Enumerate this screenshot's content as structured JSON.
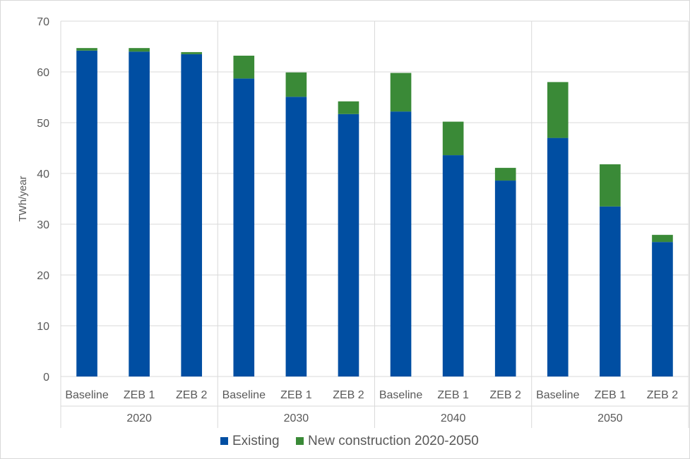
{
  "chart_data": {
    "type": "bar",
    "stacked": true,
    "ylabel": "TWh/year",
    "ylim": [
      0,
      70
    ],
    "yticks": [
      0,
      10,
      20,
      30,
      40,
      50,
      60,
      70
    ],
    "groups": [
      {
        "label": "2020",
        "categories": [
          "Baseline",
          "ZEB 1",
          "ZEB 2"
        ]
      },
      {
        "label": "2030",
        "categories": [
          "Baseline",
          "ZEB 1",
          "ZEB 2"
        ]
      },
      {
        "label": "2040",
        "categories": [
          "Baseline",
          "ZEB 1",
          "ZEB 2"
        ]
      },
      {
        "label": "2050",
        "categories": [
          "Baseline",
          "ZEB 1",
          "ZEB 2"
        ]
      }
    ],
    "series": [
      {
        "name": "Existing",
        "color": "#004ea2",
        "values": [
          64.2,
          64.0,
          63.5,
          58.7,
          55.1,
          51.7,
          52.2,
          43.6,
          38.6,
          47.0,
          33.5,
          26.5
        ]
      },
      {
        "name": "New construction 2020-2050",
        "color": "#3a8a37",
        "values": [
          0.5,
          0.7,
          0.4,
          4.5,
          4.8,
          2.5,
          7.6,
          6.6,
          2.5,
          11.0,
          8.3,
          1.4
        ]
      }
    ],
    "grid": true,
    "legend": "bottom"
  }
}
